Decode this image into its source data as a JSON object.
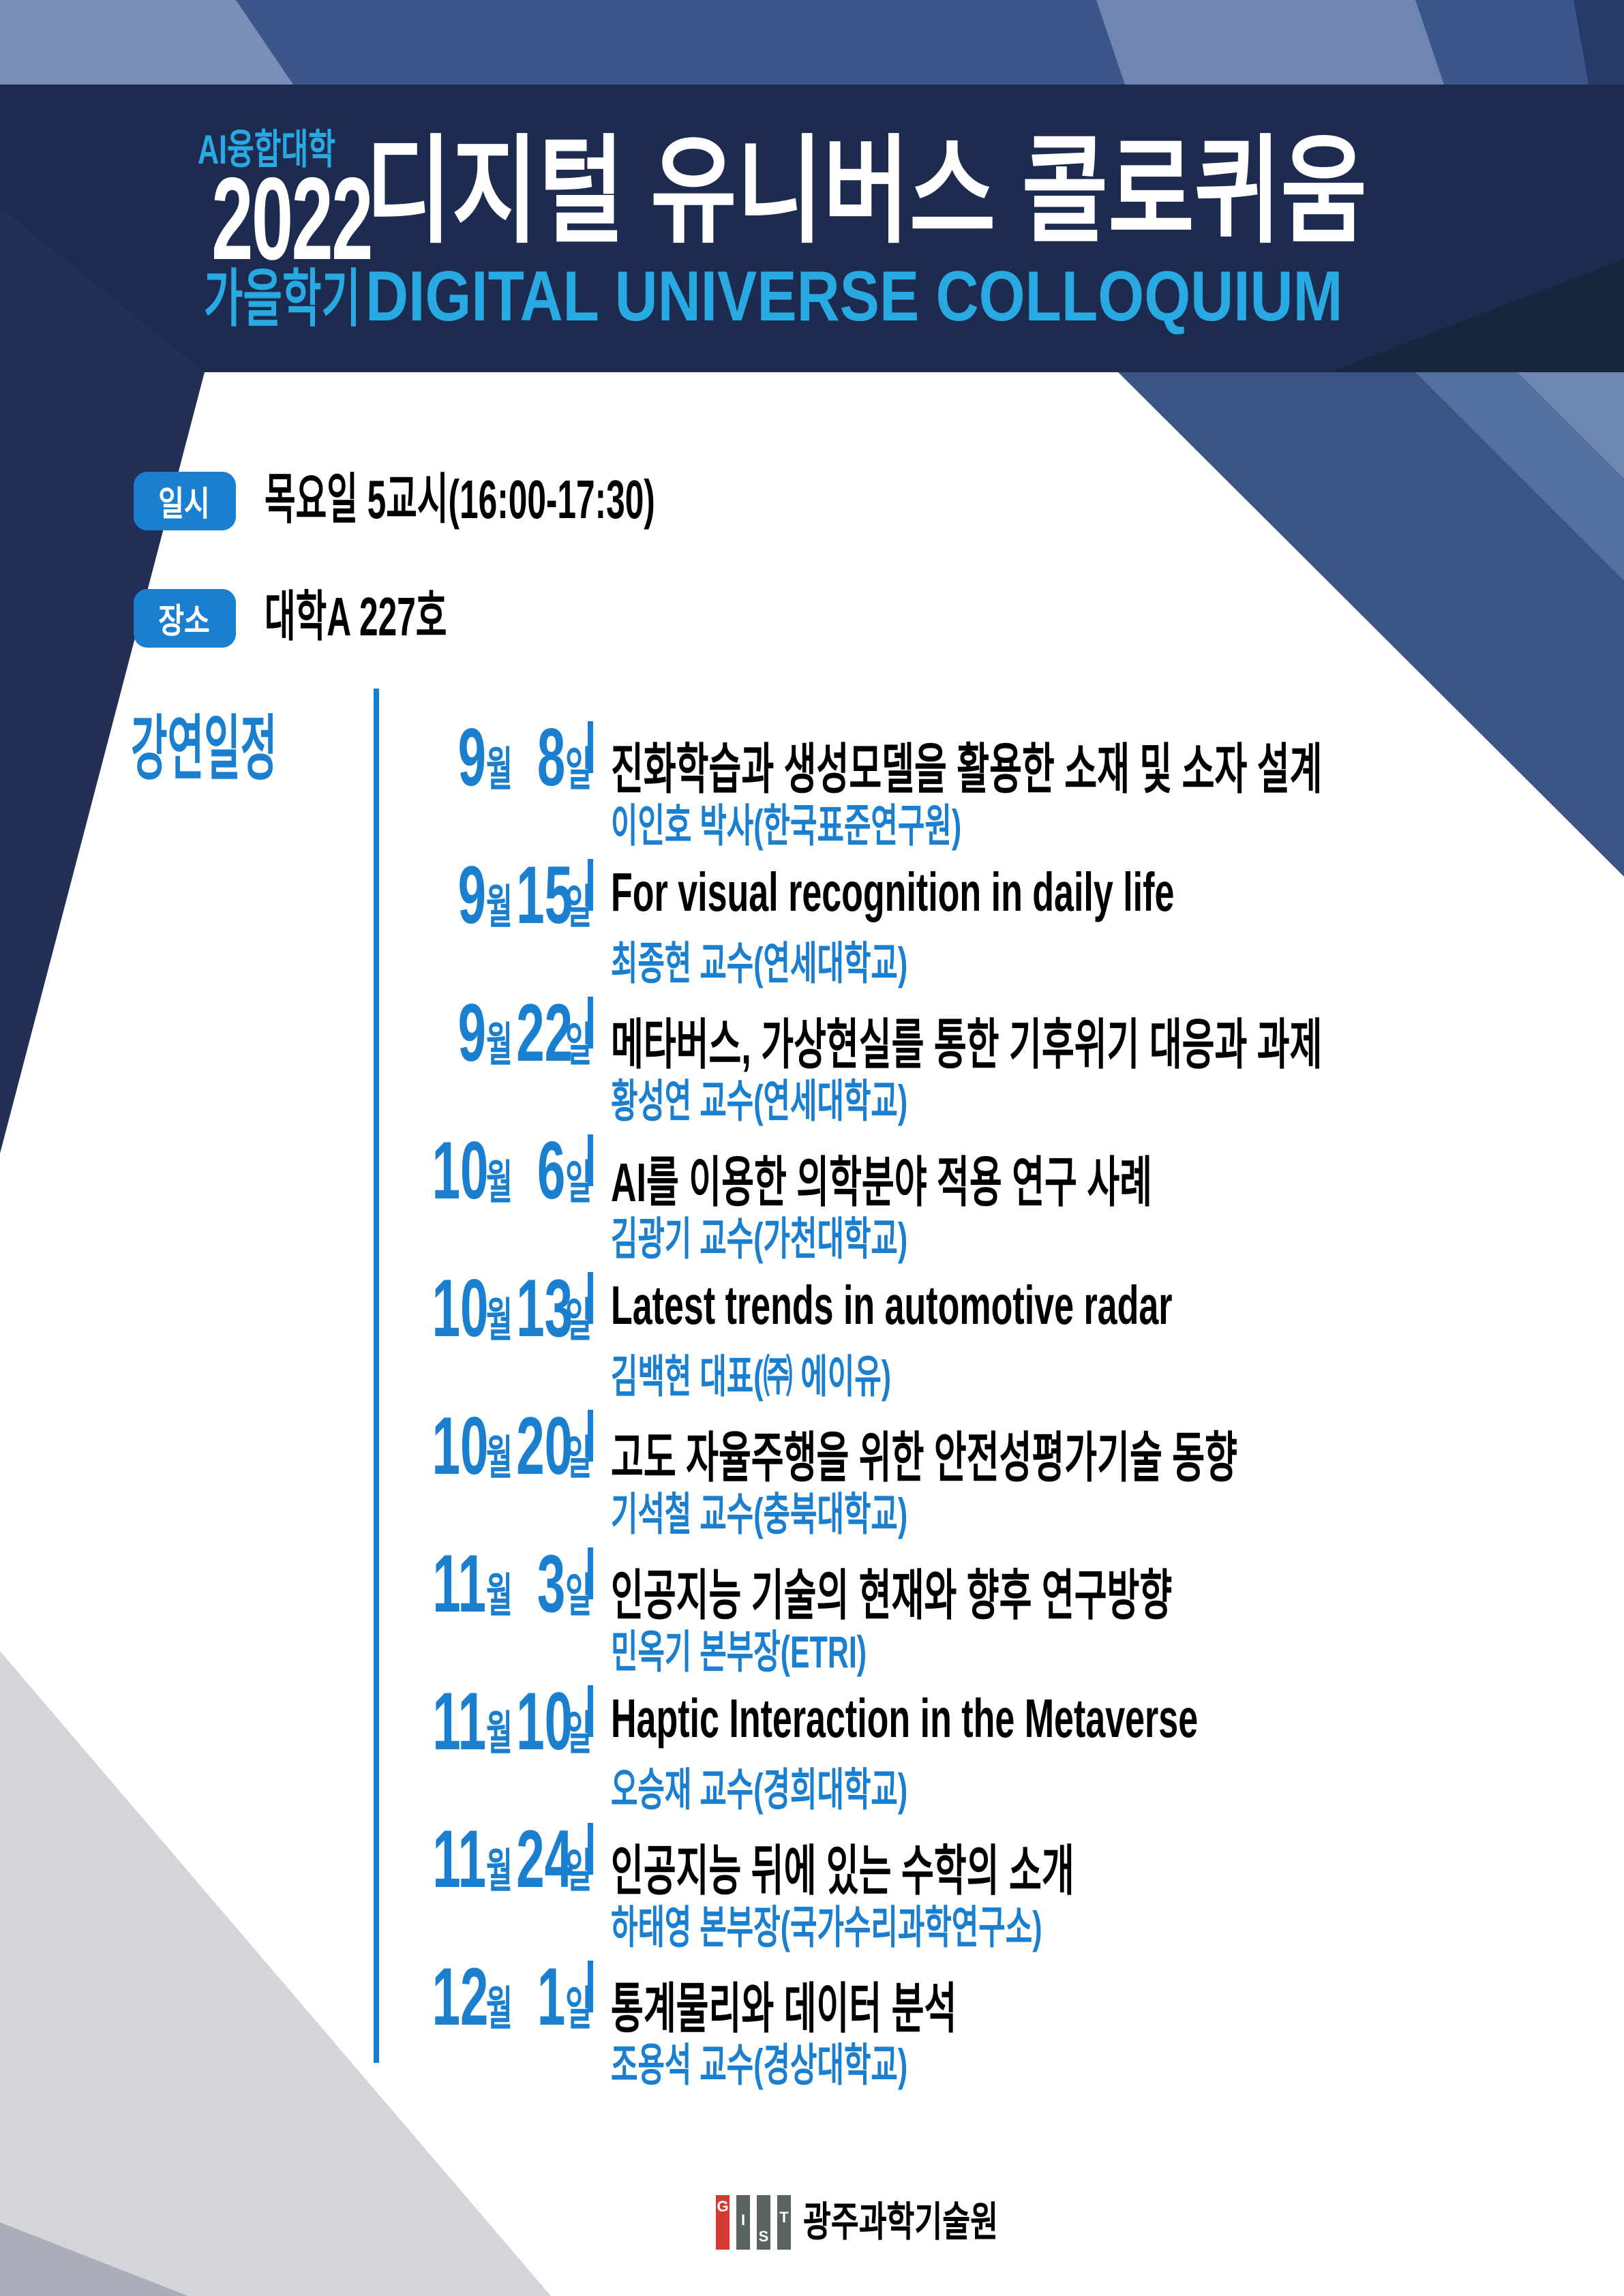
{
  "header": {
    "college": "AI융합대학",
    "year": "2022",
    "semester": "가을학기",
    "title_ko": "디지털 유니버스 콜로퀴움",
    "title_en": "DIGITAL UNIVERSE COLLOQUIUM"
  },
  "info": {
    "datetime_label": "일시",
    "datetime_value": "목요일 5교시(16:00-17:30)",
    "location_label": "장소",
    "location_value": "대학A 227호"
  },
  "schedule": {
    "heading": "강연일정",
    "month_unit": "월",
    "day_unit": "일",
    "rows": [
      {
        "month": "9",
        "day": "8",
        "title": "진화학습과 생성모델을 활용한 소재 및 소자 설계",
        "speaker": "이인호 박사(한국표준연구원)"
      },
      {
        "month": "9",
        "day": "15",
        "title": "For visual recognition in daily life",
        "speaker": "최종현 교수(연세대학교)"
      },
      {
        "month": "9",
        "day": "22",
        "title": "메타버스, 가상현실를 통한 기후위기 대응과 과제",
        "speaker": "황성연 교수(연세대학교)"
      },
      {
        "month": "10",
        "day": "6",
        "title": "AI를 이용한 의학분야 적용 연구 사례",
        "speaker": "김광기 교수(가천대학교)"
      },
      {
        "month": "10",
        "day": "13",
        "title": "Latest trends in automotive radar",
        "speaker": "김백현 대표(㈜ 에이유)"
      },
      {
        "month": "10",
        "day": "20",
        "title": "고도 자율주행을 위한 안전성평가기술 동향",
        "speaker": "기석철 교수(충북대학교)"
      },
      {
        "month": "11",
        "day": "3",
        "title": "인공지능 기술의 현재와 향후 연구방향",
        "speaker": "민옥기 본부장(ETRI)"
      },
      {
        "month": "11",
        "day": "10",
        "title": "Haptic Interaction in the Metaverse",
        "speaker": "오승재 교수(경희대학교)"
      },
      {
        "month": "11",
        "day": "24",
        "title": "인공지능 뒤에 있는 수학의 소개",
        "speaker": "하태영 본부장(국가수리과학연구소)"
      },
      {
        "month": "12",
        "day": "1",
        "title": "통계물리와 데이터 분석",
        "speaker": "조용석 교수(경상대학교)"
      }
    ]
  },
  "footer": {
    "org": "광주과학기술원",
    "logo_letters": [
      "G",
      "I",
      "S",
      "T"
    ]
  },
  "colors": {
    "accent": "#29A9E1",
    "blue": "#1B7FD0",
    "navy": "#1D2B50",
    "band": "#3C5689",
    "light_quad": "#7A8FB8",
    "light_stripe": "#6E86B0",
    "corner_dark": "#263B69",
    "band_dark": "#18253F",
    "left_wedge": "#232F56",
    "wedge_main": "#3B5486",
    "wedge_mid": "#54709F",
    "wedge_light": "#6E87B1",
    "gray_light": "#D3D5DA",
    "gray_dark": "#A9AEB9",
    "gist_red": "#D23B31",
    "gist_gray": "#5B6361"
  }
}
